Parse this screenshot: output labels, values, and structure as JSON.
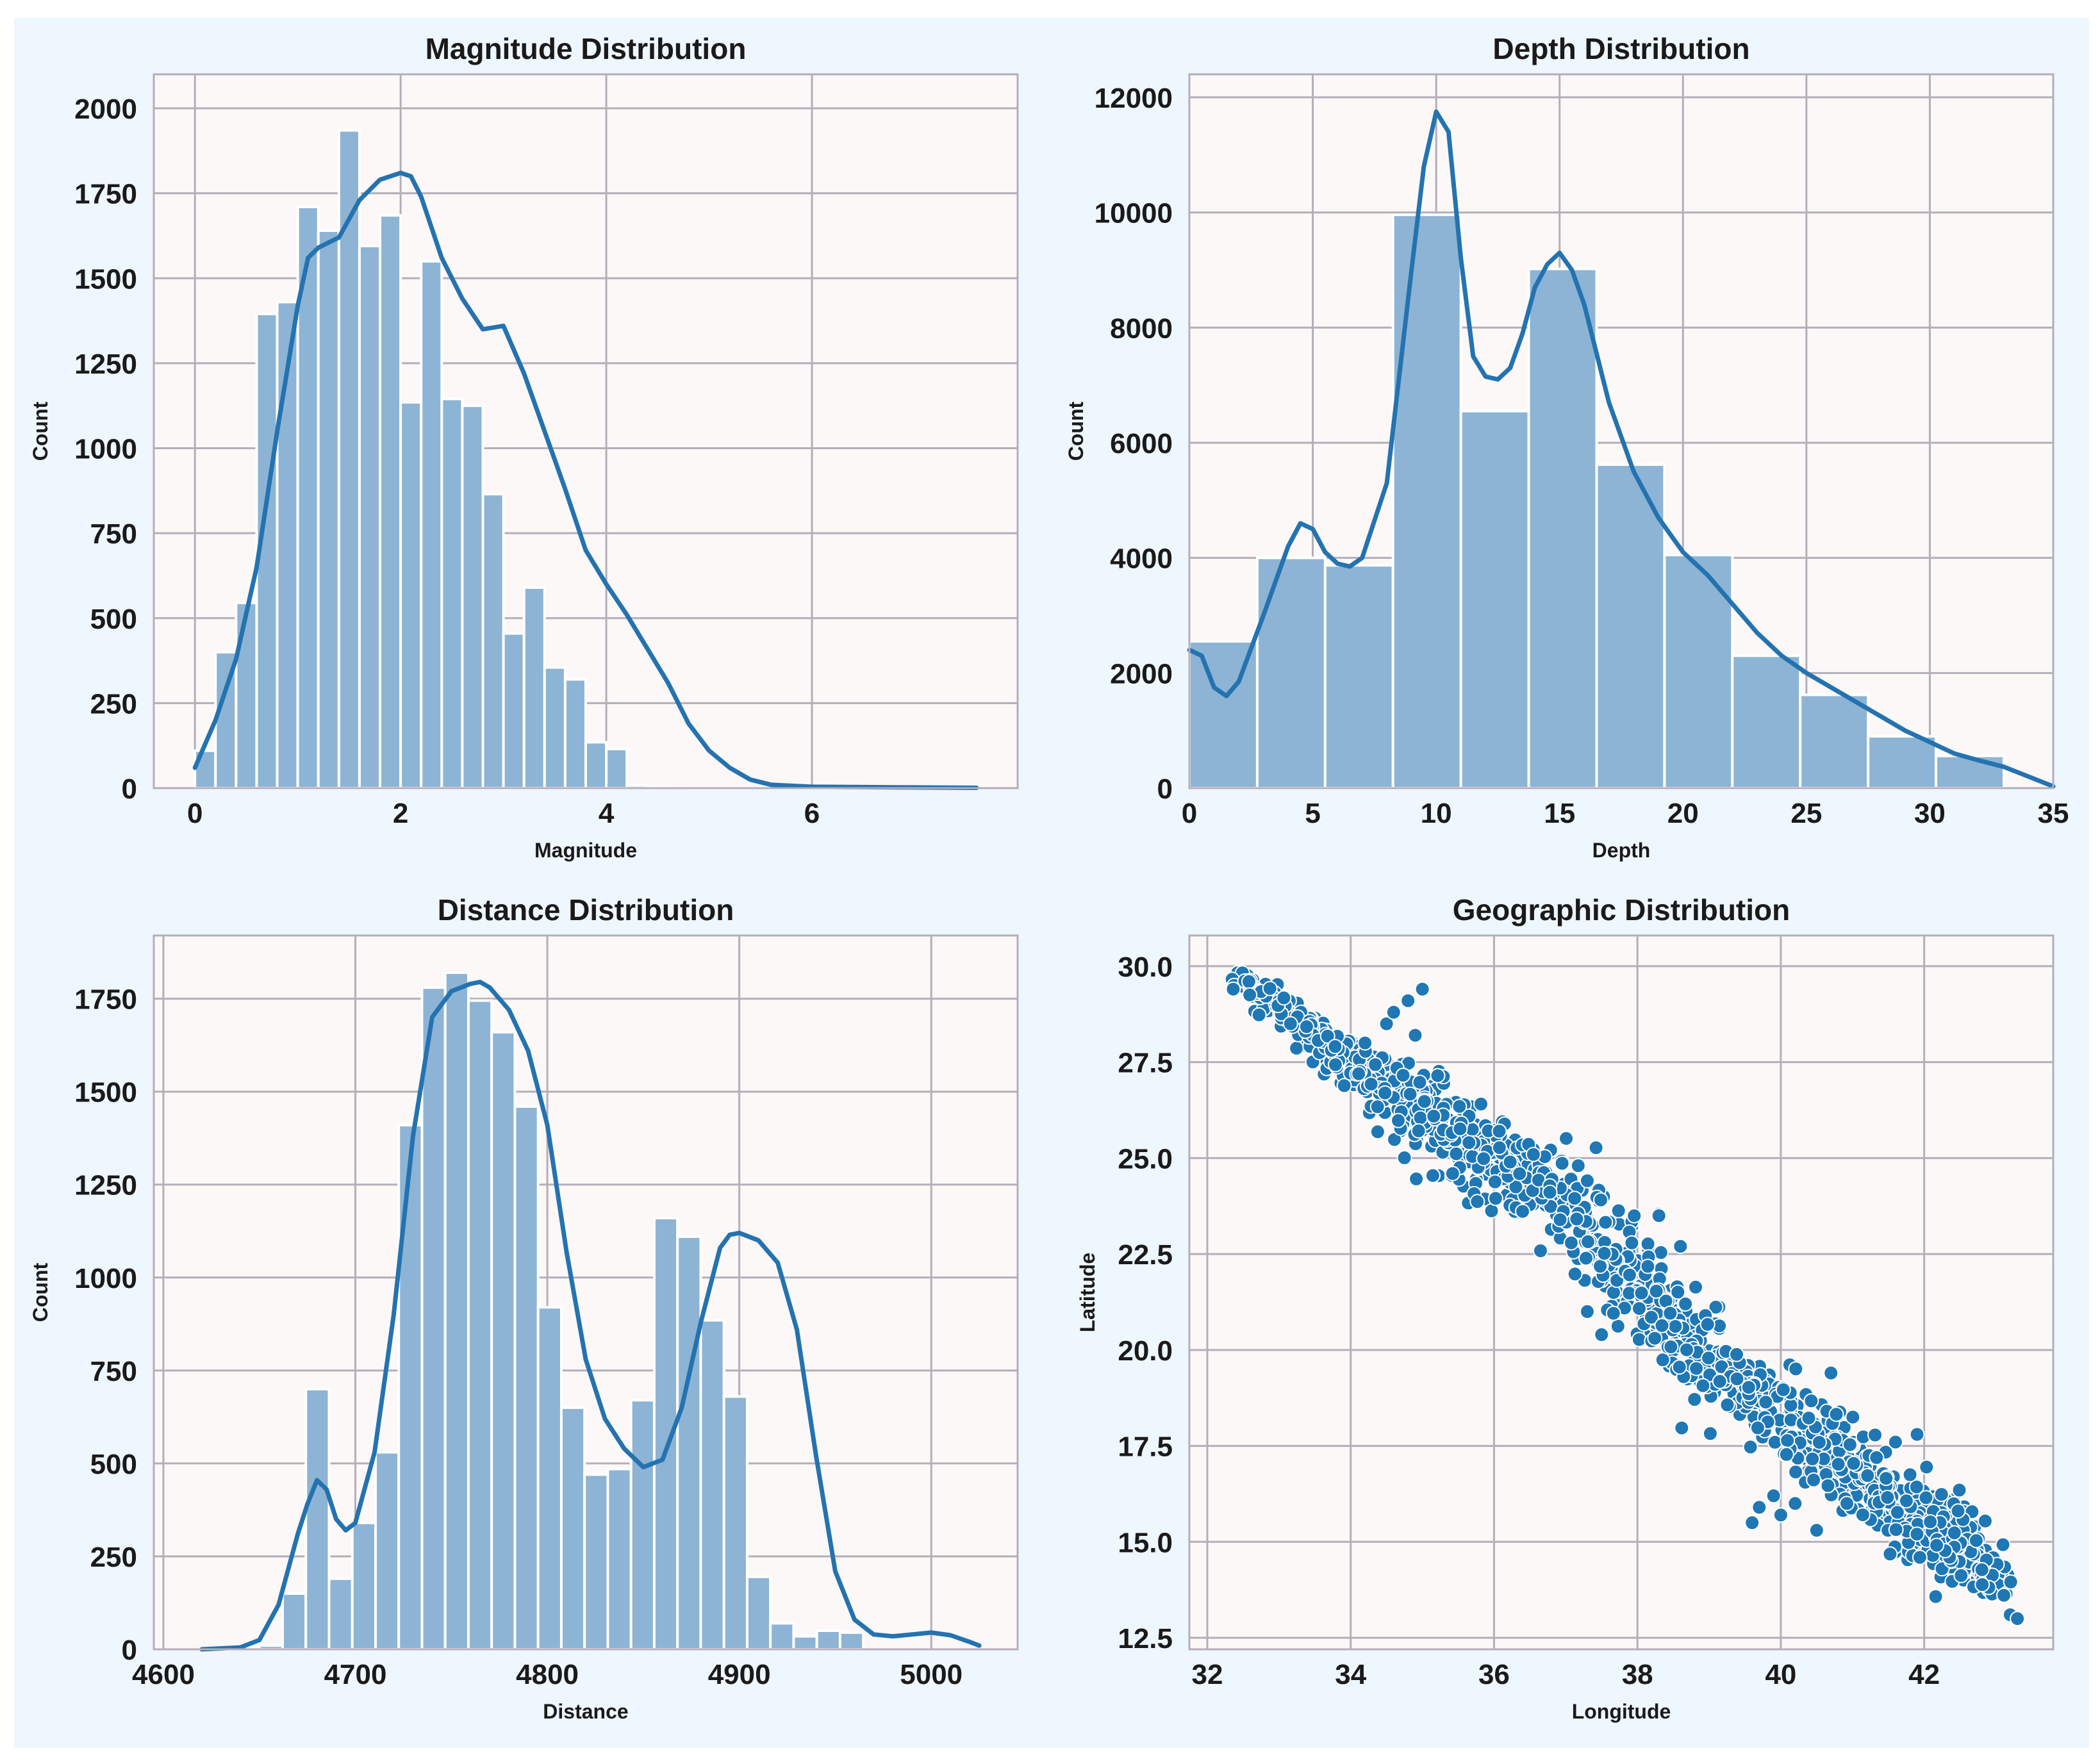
{
  "colors": {
    "figure_bg": "#eef6fe",
    "axes_bg": "#fcf8f8",
    "grid": "#b3aeb8",
    "bar_fill": "#8db4d5",
    "bar_edge": "#ffffff",
    "kde": "#2473b0",
    "point": "#1f77b4"
  },
  "chart_data": [
    {
      "id": "magnitude",
      "type": "bar",
      "title": "Magnitude Distribution",
      "xlabel": "Magnitude",
      "ylabel": "Count",
      "xlim": [
        -0.4,
        8.0
      ],
      "ylim": [
        0,
        2100
      ],
      "xticks": [
        0,
        2,
        4,
        6
      ],
      "yticks": [
        0,
        250,
        500,
        750,
        1000,
        1250,
        1500,
        1750,
        2000
      ],
      "bins": {
        "start": 0.0,
        "width": 0.2,
        "counts": [
          110,
          400,
          545,
          1395,
          1430,
          1710,
          1640,
          1935,
          1595,
          1685,
          1135,
          1550,
          1145,
          1125,
          865,
          455,
          590,
          355,
          320,
          135,
          115,
          8,
          4,
          2,
          1,
          1,
          1,
          1,
          1,
          1,
          1,
          1,
          1,
          1,
          1,
          1,
          1,
          0
        ]
      },
      "kde": {
        "x": [
          0,
          0.2,
          0.4,
          0.6,
          0.8,
          1.0,
          1.1,
          1.2,
          1.4,
          1.6,
          1.8,
          2.0,
          2.1,
          2.2,
          2.4,
          2.6,
          2.8,
          3.0,
          3.2,
          3.4,
          3.6,
          3.8,
          4.0,
          4.2,
          4.4,
          4.6,
          4.8,
          5.0,
          5.2,
          5.4,
          5.6,
          6.0,
          6.5,
          7.0,
          7.6
        ],
        "y": [
          60,
          200,
          380,
          650,
          1050,
          1420,
          1560,
          1590,
          1620,
          1730,
          1790,
          1810,
          1800,
          1740,
          1560,
          1440,
          1350,
          1360,
          1220,
          1050,
          880,
          700,
          600,
          510,
          410,
          310,
          190,
          110,
          60,
          25,
          10,
          4,
          3,
          2,
          1
        ]
      }
    },
    {
      "id": "depth",
      "type": "bar",
      "title": "Depth Distribution",
      "xlabel": "Depth",
      "ylabel": "Count",
      "xlim": [
        0,
        35
      ],
      "ylim": [
        0,
        12400
      ],
      "xticks": [
        0,
        5,
        10,
        15,
        20,
        25,
        30,
        35
      ],
      "yticks": [
        0,
        2000,
        4000,
        6000,
        8000,
        10000,
        12000
      ],
      "bins": {
        "start": 0.0,
        "width": 2.75,
        "counts": [
          2550,
          4000,
          3870,
          9960,
          6550,
          9020,
          5620,
          4050,
          2300,
          1620,
          900,
          560
        ]
      },
      "kde": {
        "x": [
          0,
          0.5,
          1.0,
          1.5,
          2.0,
          3.0,
          4.0,
          4.5,
          5.0,
          5.5,
          6.0,
          6.5,
          7.0,
          8.0,
          9.0,
          9.5,
          10.0,
          10.5,
          11.0,
          11.5,
          12.0,
          12.5,
          13.0,
          13.5,
          14.0,
          14.5,
          15.0,
          15.5,
          16.0,
          17.0,
          18.0,
          19.0,
          20.0,
          21.0,
          22.0,
          23.0,
          24.0,
          25.0,
          26.0,
          27.0,
          28.0,
          29.0,
          30.0,
          31.0,
          32.0,
          33.0,
          34.0,
          35.0
        ],
        "y": [
          2400,
          2300,
          1750,
          1600,
          1850,
          3000,
          4200,
          4600,
          4500,
          4100,
          3900,
          3850,
          4000,
          5300,
          9000,
          10800,
          11750,
          11400,
          9200,
          7500,
          7150,
          7100,
          7300,
          7900,
          8700,
          9100,
          9300,
          9000,
          8400,
          6700,
          5500,
          4700,
          4100,
          3700,
          3200,
          2700,
          2300,
          2000,
          1750,
          1500,
          1250,
          1000,
          800,
          600,
          480,
          370,
          200,
          30
        ]
      }
    },
    {
      "id": "distance",
      "type": "bar",
      "title": "Distance Distribution",
      "xlabel": "Distance",
      "ylabel": "Count",
      "xlim": [
        4595,
        5045
      ],
      "ylim": [
        0,
        1920
      ],
      "xticks": [
        4600,
        4700,
        4800,
        4900,
        5000
      ],
      "yticks": [
        0,
        250,
        500,
        750,
        1000,
        1250,
        1500,
        1750
      ],
      "bins": {
        "start": 4650,
        "width": 12.1,
        "counts": [
          10,
          150,
          700,
          190,
          340,
          530,
          1410,
          1780,
          1820,
          1745,
          1660,
          1460,
          920,
          650,
          470,
          485,
          670,
          1160,
          1110,
          885,
          680,
          195,
          70,
          35,
          50,
          45
        ]
      },
      "kde": {
        "x": [
          4620,
          4640,
          4650,
          4660,
          4670,
          4675,
          4680,
          4685,
          4690,
          4695,
          4700,
          4710,
          4720,
          4730,
          4740,
          4750,
          4760,
          4765,
          4770,
          4780,
          4790,
          4800,
          4810,
          4820,
          4830,
          4840,
          4850,
          4860,
          4870,
          4880,
          4890,
          4895,
          4900,
          4910,
          4920,
          4930,
          4940,
          4950,
          4960,
          4970,
          4980,
          4990,
          5000,
          5010,
          5020,
          5025
        ],
        "y": [
          0,
          5,
          25,
          120,
          310,
          390,
          455,
          430,
          350,
          320,
          340,
          530,
          900,
          1380,
          1700,
          1770,
          1790,
          1795,
          1780,
          1720,
          1610,
          1410,
          1070,
          780,
          620,
          540,
          490,
          510,
          650,
          880,
          1080,
          1115,
          1120,
          1100,
          1040,
          860,
          520,
          210,
          80,
          40,
          35,
          40,
          45,
          38,
          20,
          10
        ]
      }
    },
    {
      "id": "geographic",
      "type": "scatter",
      "title": "Geographic Distribution",
      "xlabel": "Longitude",
      "ylabel": "Latitude",
      "xlim": [
        31.75,
        43.8
      ],
      "ylim": [
        12.2,
        30.8
      ],
      "xticks": [
        32,
        34,
        36,
        38,
        40,
        42
      ],
      "yticks": [
        12.5,
        15.0,
        17.5,
        20.0,
        22.5,
        25.0,
        27.5,
        30.0
      ],
      "ytick_labels": [
        "12.5",
        "15.0",
        "17.5",
        "20.0",
        "22.5",
        "25.0",
        "27.5",
        "30.0"
      ],
      "trend": [
        {
          "lon": 32.4,
          "lat": 29.7,
          "spread": 0.15
        },
        {
          "lon": 33.5,
          "lat": 28.3,
          "spread": 0.25
        },
        {
          "lon": 34.6,
          "lat": 26.8,
          "spread": 0.45
        },
        {
          "lon": 35.8,
          "lat": 25.2,
          "spread": 0.6
        },
        {
          "lon": 36.8,
          "lat": 24.2,
          "spread": 0.55
        },
        {
          "lon": 38.0,
          "lat": 21.7,
          "spread": 0.55
        },
        {
          "lon": 39.0,
          "lat": 19.6,
          "spread": 0.5
        },
        {
          "lon": 40.3,
          "lat": 17.8,
          "spread": 0.5
        },
        {
          "lon": 41.5,
          "lat": 16.2,
          "spread": 0.55
        },
        {
          "lon": 42.3,
          "lat": 15.1,
          "spread": 0.5
        },
        {
          "lon": 43.0,
          "lat": 13.8,
          "spread": 0.25
        }
      ],
      "extra_points": [
        {
          "lon": 34.2,
          "lat": 28.0
        },
        {
          "lon": 34.5,
          "lat": 28.5
        },
        {
          "lon": 34.8,
          "lat": 29.1
        },
        {
          "lon": 35.0,
          "lat": 29.4
        },
        {
          "lon": 34.6,
          "lat": 28.8
        },
        {
          "lon": 34.9,
          "lat": 28.2
        },
        {
          "lon": 39.7,
          "lat": 15.9
        },
        {
          "lon": 39.9,
          "lat": 16.2
        },
        {
          "lon": 39.6,
          "lat": 15.5
        },
        {
          "lon": 40.2,
          "lat": 16.0
        },
        {
          "lon": 40.5,
          "lat": 15.3
        },
        {
          "lon": 40.0,
          "lat": 15.7
        },
        {
          "lon": 43.2,
          "lat": 13.1
        },
        {
          "lon": 43.3,
          "lat": 13.0
        },
        {
          "lon": 41.6,
          "lat": 17.6
        },
        {
          "lon": 41.9,
          "lat": 17.8
        },
        {
          "lon": 37.3,
          "lat": 21.0
        },
        {
          "lon": 37.5,
          "lat": 20.4
        },
        {
          "lon": 38.3,
          "lat": 23.5
        },
        {
          "lon": 38.6,
          "lat": 22.7
        },
        {
          "lon": 40.7,
          "lat": 19.4
        }
      ]
    }
  ]
}
